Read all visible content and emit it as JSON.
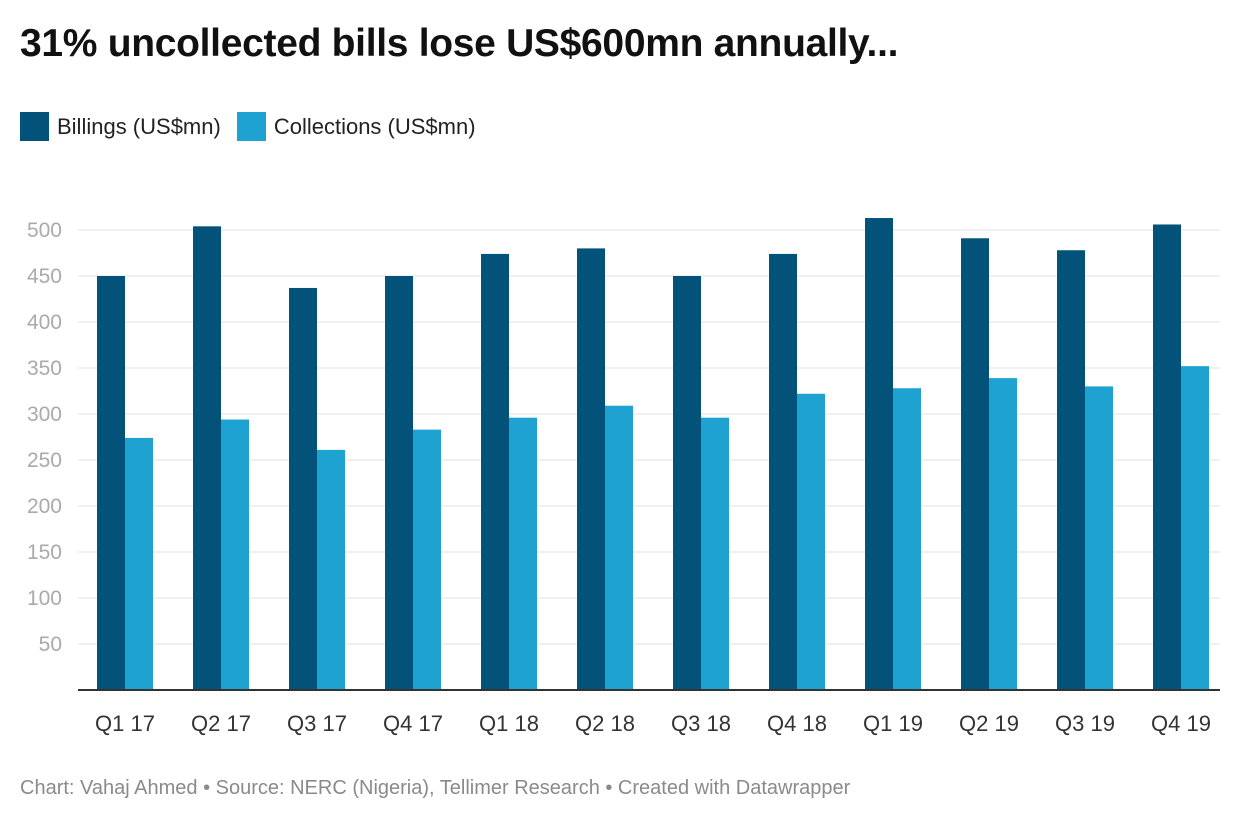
{
  "header": {
    "title": "31% uncollected bills lose US$600mn annually..."
  },
  "footer": {
    "text": "Chart: Vahaj Ahmed • Source: NERC (Nigeria), Tellimer Research • Created with Datawrapper"
  },
  "colors": {
    "billings": "#03527a",
    "collections": "#1da2d1",
    "grid": "#e2e2e2",
    "axis": "#333333"
  },
  "chart_data": {
    "type": "bar",
    "title": "31% uncollected bills lose US$600mn annually...",
    "xlabel": "",
    "ylabel": "",
    "categories": [
      "Q1 17",
      "Q2 17",
      "Q3 17",
      "Q4 17",
      "Q1 18",
      "Q2 18",
      "Q3 18",
      "Q4 18",
      "Q1 19",
      "Q2 19",
      "Q3 19",
      "Q4 19"
    ],
    "series": [
      {
        "name": "Billings (US$mn)",
        "values": [
          450,
          504,
          437,
          450,
          474,
          480,
          450,
          474,
          513,
          491,
          478,
          506
        ]
      },
      {
        "name": "Collections (US$mn)",
        "values": [
          274,
          294,
          261,
          283,
          296,
          309,
          296,
          322,
          328,
          339,
          330,
          352
        ]
      }
    ],
    "yticks": [
      50,
      100,
      150,
      200,
      250,
      300,
      350,
      400,
      450,
      500
    ],
    "ylim": [
      0,
      500
    ],
    "grid": true,
    "legend": "top-left"
  }
}
